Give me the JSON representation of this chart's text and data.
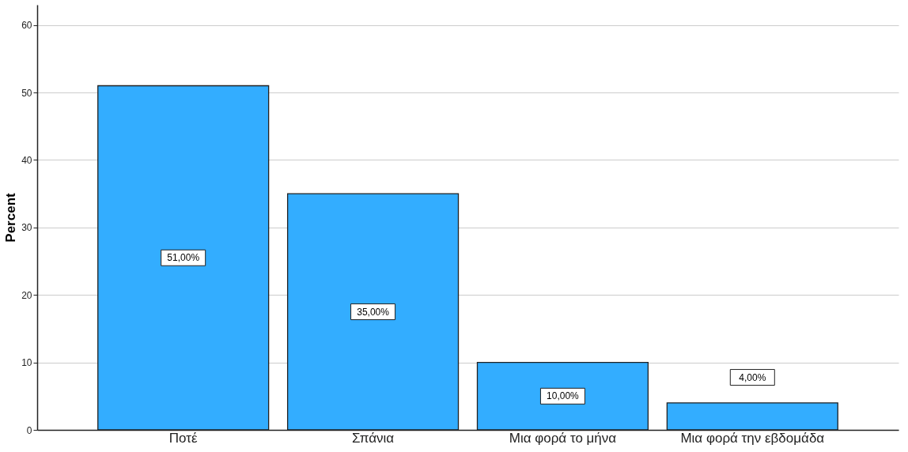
{
  "chart_data": {
    "type": "bar",
    "ylabel": "Percent",
    "categories": [
      "Ποτέ",
      "Σπάνια",
      "Μια φορά το μήνα",
      "Μια φορά την εβδομάδα"
    ],
    "values": [
      51,
      35,
      10,
      4
    ],
    "value_labels": [
      "51,00%",
      "35,00%",
      "10,00%",
      "4,00%"
    ],
    "color": "#33adff",
    "ylim": [
      0,
      63
    ],
    "yticks": [
      0,
      10,
      20,
      30,
      40,
      50,
      60
    ],
    "grid": "y"
  }
}
